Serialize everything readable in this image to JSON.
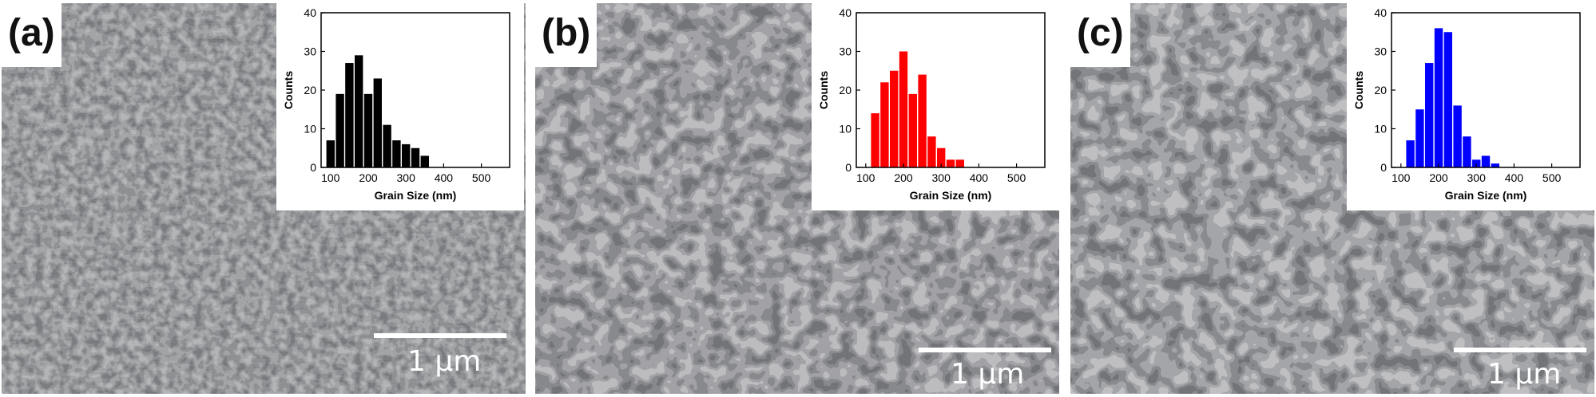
{
  "panels": [
    {
      "id": "a",
      "label": "(a)",
      "scale_label": "1 μm",
      "color": "#000000",
      "image_description": "SEM micrograph of fine polycrystalline grains"
    },
    {
      "id": "b",
      "label": "(b)",
      "scale_label": "1 μm",
      "color": "#ff0000",
      "image_description": "SEM micrograph of medium polycrystalline grains"
    },
    {
      "id": "c",
      "label": "(c)",
      "scale_label": "1 μm",
      "color": "#0000ff",
      "image_description": "SEM micrograph of large polycrystalline grains"
    }
  ],
  "chart_data": [
    {
      "type": "bar",
      "panel": "a",
      "x": [
        100,
        125,
        150,
        175,
        200,
        225,
        250,
        275,
        300,
        325,
        350,
        375
      ],
      "values": [
        7,
        19,
        27,
        29,
        19,
        23,
        11,
        7,
        6,
        5,
        3,
        0
      ],
      "xlabel": "Grain Size (nm)",
      "ylabel": "Counts",
      "xlim": [
        75,
        575
      ],
      "ylim": [
        0,
        40
      ],
      "xticks": [
        100,
        200,
        300,
        400,
        500
      ],
      "yticks": [
        0,
        10,
        20,
        30,
        40
      ],
      "bar_width": 22,
      "color": "#000000",
      "grid": false
    },
    {
      "type": "bar",
      "panel": "b",
      "x": [
        125,
        150,
        175,
        200,
        225,
        250,
        275,
        300,
        325,
        350,
        375,
        400,
        425,
        450,
        475
      ],
      "values": [
        14,
        22,
        25,
        30,
        19,
        24,
        8,
        5,
        2,
        2,
        0,
        0,
        0,
        0,
        0
      ],
      "xlabel": "Grain Size (nm)",
      "ylabel": "Counts",
      "xlim": [
        75,
        575
      ],
      "ylim": [
        0,
        40
      ],
      "xticks": [
        100,
        200,
        300,
        400,
        500
      ],
      "yticks": [
        0,
        10,
        20,
        30,
        40
      ],
      "bar_width": 22,
      "color": "#ff0000",
      "grid": false
    },
    {
      "type": "bar",
      "panel": "c",
      "x": [
        125,
        150,
        175,
        200,
        225,
        250,
        275,
        300,
        325,
        350,
        375,
        400,
        425,
        450,
        475,
        500,
        525,
        550
      ],
      "values": [
        7,
        15,
        27,
        36,
        35,
        16,
        8,
        2,
        3,
        1,
        0,
        0,
        0,
        0,
        0,
        0,
        0,
        0
      ],
      "xlabel": "Grain Size (nm)",
      "ylabel": "Counts",
      "xlim": [
        75,
        575
      ],
      "ylim": [
        0,
        40
      ],
      "xticks": [
        100,
        200,
        300,
        400,
        500
      ],
      "yticks": [
        0,
        10,
        20,
        30,
        40
      ],
      "bar_width": 22,
      "color": "#0000ff",
      "grid": false
    }
  ]
}
